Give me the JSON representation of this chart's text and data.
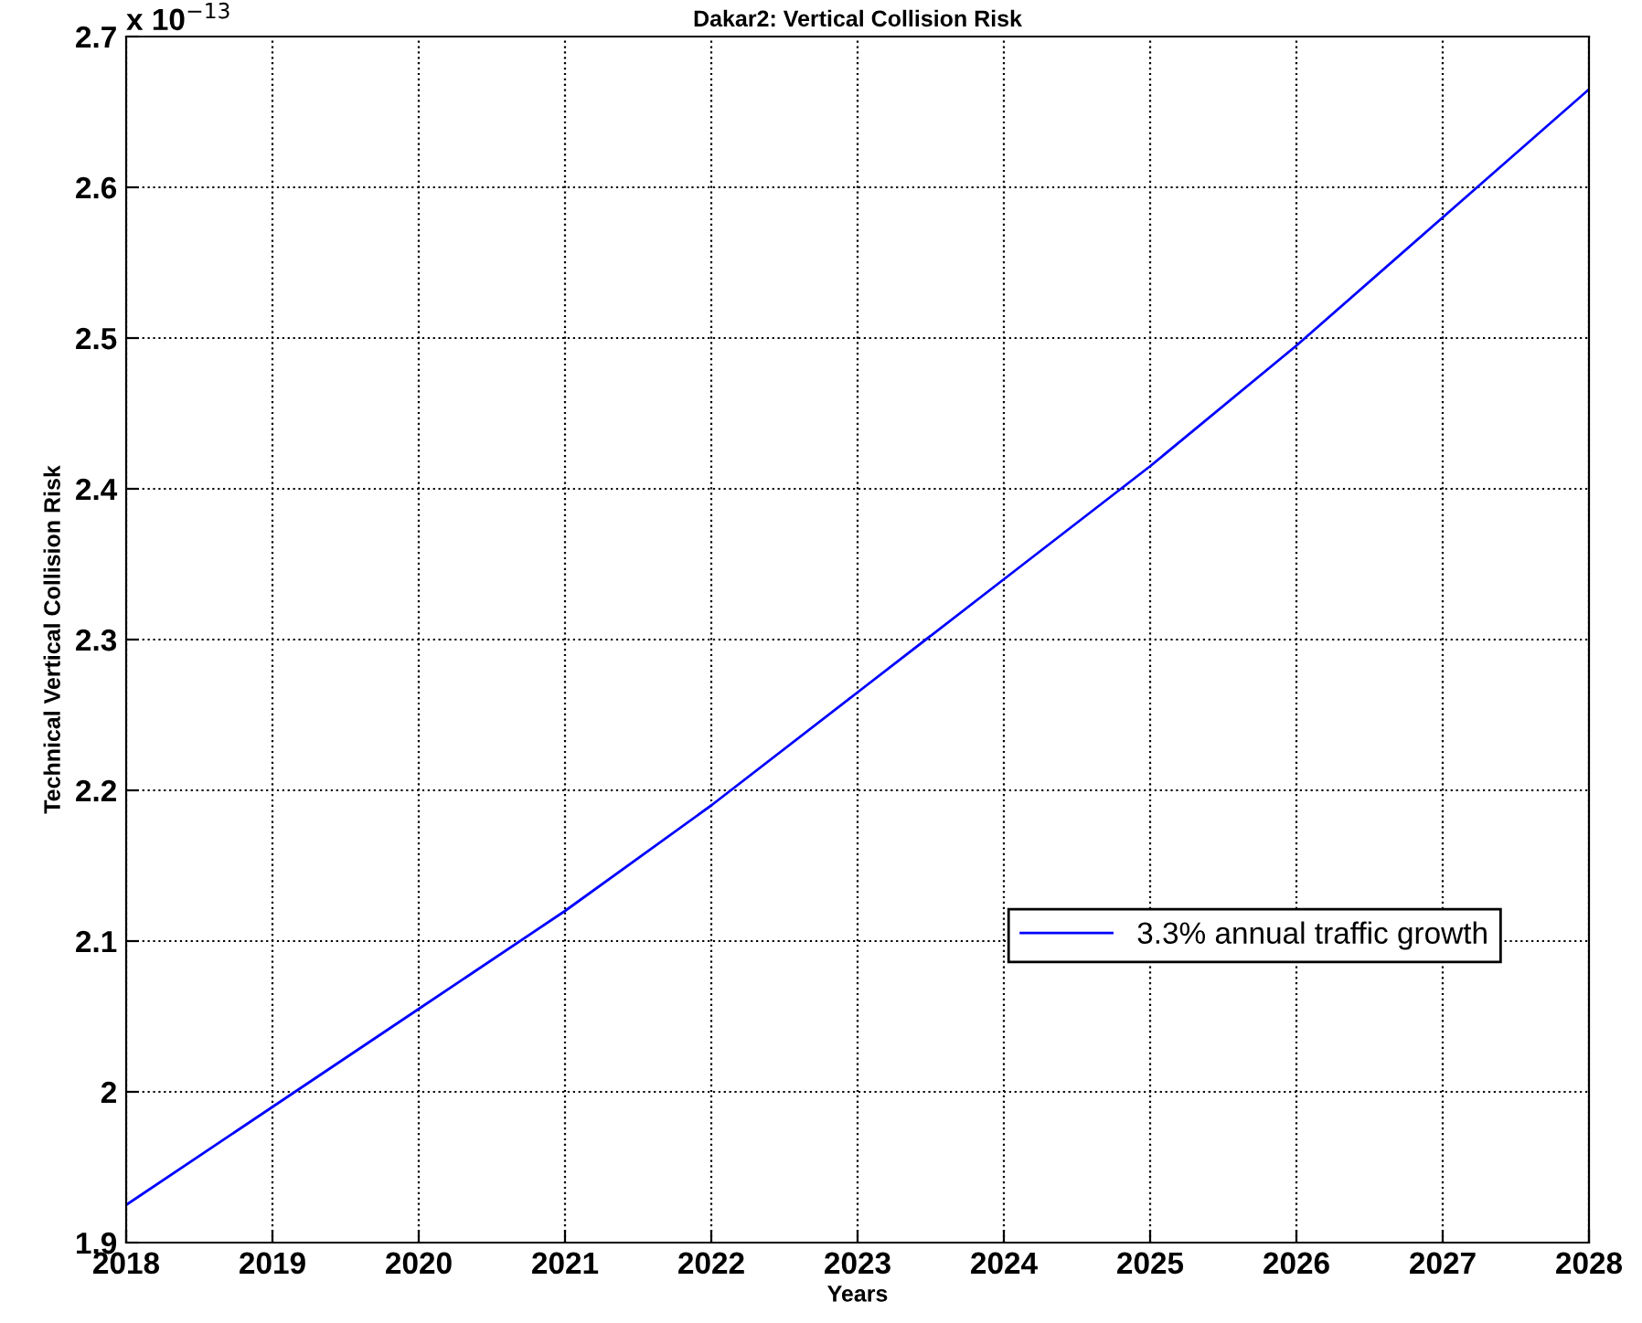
{
  "chart_data": {
    "type": "line",
    "title": "Dakar2: Vertical Collision Risk",
    "xlabel": "Years",
    "ylabel": "Technical Vertical Collision Risk",
    "annotations": [
      "x 10$^{−13}$"
    ],
    "x": [
      2018,
      2019,
      2020,
      2021,
      2022,
      2023,
      2024,
      2025,
      2026,
      2027,
      2028
    ],
    "series": [
      {
        "name": "3.3% annual traffic growth",
        "color": "#0000ff",
        "values": [
          1.925,
          1.99,
          2.055,
          2.12,
          2.19,
          2.265,
          2.34,
          2.415,
          2.495,
          2.58,
          2.665
        ]
      }
    ],
    "xlim": [
      2018,
      2028
    ],
    "xticks": [
      2018,
      2019,
      2020,
      2021,
      2022,
      2023,
      2024,
      2025,
      2026,
      2027,
      2028
    ],
    "ylim": [
      1.9,
      2.7
    ],
    "yticks": [
      1.9,
      2,
      2.1,
      2.2,
      2.3,
      2.4,
      2.5,
      2.6,
      2.7
    ],
    "grid": true,
    "legend": "bottom right",
    "line_style": "solid",
    "marker": "none"
  }
}
